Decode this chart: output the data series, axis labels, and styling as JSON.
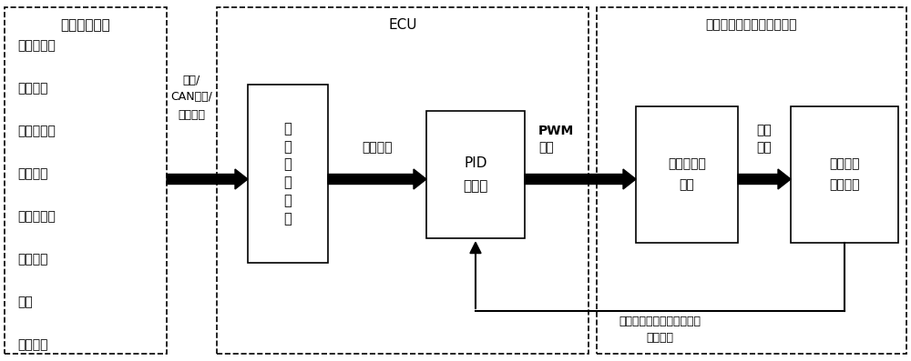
{
  "bg_color": "#ffffff",
  "text_color": "#000000",
  "fig_width": 10.0,
  "fig_height": 3.97,
  "section1_title": "整车参数信息",
  "section1_items": [
    "发动机水温",
    "环境温度",
    "变速器油温",
    "进气温度",
    "发动机转速",
    "空调压力",
    "车速",
    "大气压力"
  ],
  "section2_title": "ECU",
  "section3_title": "电控硅油离合器和机械风扇",
  "connector_label": "硬线/\nCAN总线/\n内部读取",
  "box1_text": "内\n部\n逻\n辑\n运\n算",
  "arrow1_label": "目标转速",
  "box2_text": "PID\n调节器",
  "arrow2_label": "PWM\n信号",
  "box3_text": "电控硅油离\n合器",
  "arrow3_label": "剪切\n扭矩",
  "box4_text": "电控硅油\n机械风扇",
  "feedback_label": "霍尔转速传感器监测风扇的\n实际转速"
}
